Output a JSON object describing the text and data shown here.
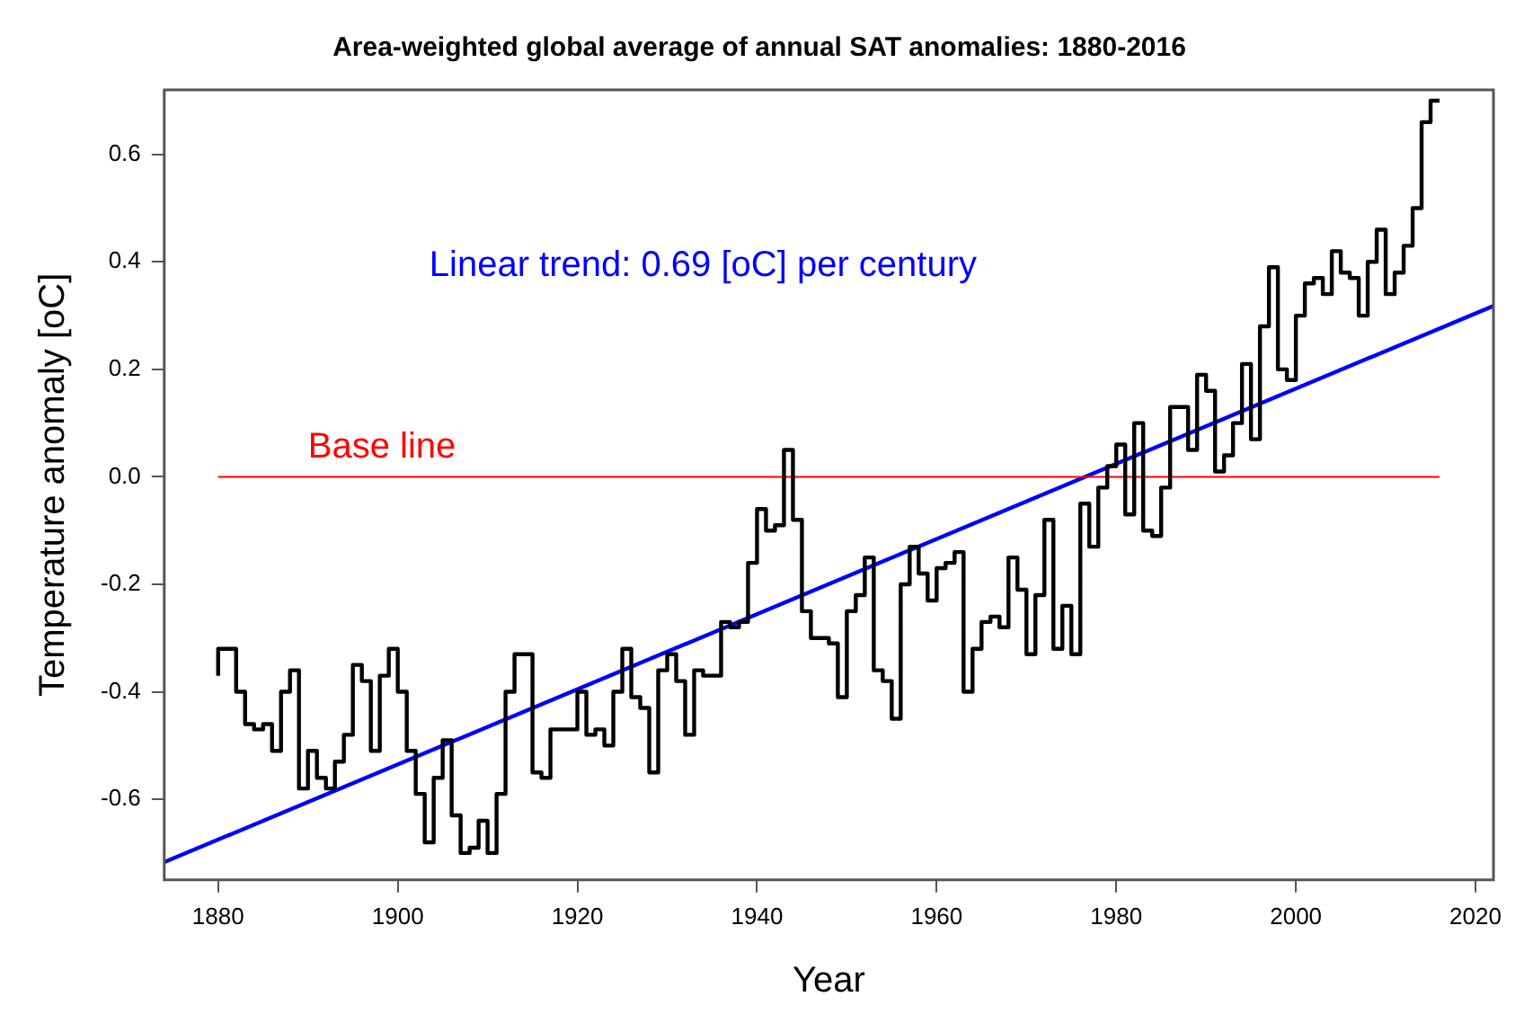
{
  "chart_data": {
    "type": "step",
    "title": "Area-weighted global average of annual SAT anomalies: 1880-2016",
    "xlabel": "Year",
    "ylabel": "Temperature anomaly [oC]",
    "x": [
      1880,
      1881,
      1882,
      1883,
      1884,
      1885,
      1886,
      1887,
      1888,
      1889,
      1890,
      1891,
      1892,
      1893,
      1894,
      1895,
      1896,
      1897,
      1898,
      1899,
      1900,
      1901,
      1902,
      1903,
      1904,
      1905,
      1906,
      1907,
      1908,
      1909,
      1910,
      1911,
      1912,
      1913,
      1914,
      1915,
      1916,
      1917,
      1918,
      1919,
      1920,
      1921,
      1922,
      1923,
      1924,
      1925,
      1926,
      1927,
      1928,
      1929,
      1930,
      1931,
      1932,
      1933,
      1934,
      1935,
      1936,
      1937,
      1938,
      1939,
      1940,
      1941,
      1942,
      1943,
      1944,
      1945,
      1946,
      1947,
      1948,
      1949,
      1950,
      1951,
      1952,
      1953,
      1954,
      1955,
      1956,
      1957,
      1958,
      1959,
      1960,
      1961,
      1962,
      1963,
      1964,
      1965,
      1966,
      1967,
      1968,
      1969,
      1970,
      1971,
      1972,
      1973,
      1974,
      1975,
      1976,
      1977,
      1978,
      1979,
      1980,
      1981,
      1982,
      1983,
      1984,
      1985,
      1986,
      1987,
      1988,
      1989,
      1990,
      1991,
      1992,
      1993,
      1994,
      1995,
      1996,
      1997,
      1998,
      1999,
      2000,
      2001,
      2002,
      2003,
      2004,
      2005,
      2006,
      2007,
      2008,
      2009,
      2010,
      2011,
      2012,
      2013,
      2014,
      2015,
      2016
    ],
    "series": [
      {
        "color": "#000000",
        "values": [
          -0.37,
          -0.32,
          -0.32,
          -0.4,
          -0.46,
          -0.47,
          -0.46,
          -0.51,
          -0.4,
          -0.36,
          -0.58,
          -0.51,
          -0.56,
          -0.58,
          -0.53,
          -0.48,
          -0.35,
          -0.38,
          -0.51,
          -0.37,
          -0.32,
          -0.4,
          -0.51,
          -0.59,
          -0.68,
          -0.56,
          -0.49,
          -0.63,
          -0.7,
          -0.69,
          -0.64,
          -0.7,
          -0.59,
          -0.4,
          -0.33,
          -0.33,
          -0.55,
          -0.56,
          -0.47,
          -0.47,
          -0.47,
          -0.4,
          -0.48,
          -0.47,
          -0.5,
          -0.4,
          -0.32,
          -0.41,
          -0.43,
          -0.55,
          -0.36,
          -0.33,
          -0.38,
          -0.48,
          -0.36,
          -0.37,
          -0.37,
          -0.27,
          -0.28,
          -0.27,
          -0.16,
          -0.06,
          -0.1,
          -0.09,
          0.05,
          -0.08,
          -0.25,
          -0.3,
          -0.3,
          -0.31,
          -0.41,
          -0.25,
          -0.22,
          -0.15,
          -0.36,
          -0.38,
          -0.45,
          -0.2,
          -0.13,
          -0.18,
          -0.23,
          -0.17,
          -0.16,
          -0.14,
          -0.4,
          -0.32,
          -0.27,
          -0.26,
          -0.28,
          -0.15,
          -0.21,
          -0.33,
          -0.22,
          -0.08,
          -0.32,
          -0.24,
          -0.33,
          -0.05,
          -0.13,
          -0.02,
          0.02,
          0.06,
          -0.07,
          0.1,
          -0.1,
          -0.11,
          -0.02,
          0.13,
          0.13,
          0.05,
          0.19,
          0.16,
          0.01,
          0.04,
          0.1,
          0.21,
          0.07,
          0.28,
          0.39,
          0.2,
          0.18,
          0.3,
          0.36,
          0.37,
          0.34,
          0.42,
          0.38,
          0.37,
          0.3,
          0.4,
          0.46,
          0.34,
          0.38,
          0.43,
          0.5,
          0.66,
          0.7
        ]
      },
      {
        "type": "line",
        "name": "Base line",
        "color": "#ff0000",
        "x": [
          1880,
          2016
        ],
        "values": [
          0,
          0
        ]
      },
      {
        "type": "line",
        "name": "Linear trend: 0.69 [oC] per century",
        "color": "#0000ff",
        "x": [
          1874,
          2022
        ],
        "values": [
          -0.717,
          0.318
        ]
      }
    ],
    "xlim": [
      1874,
      2022
    ],
    "xticks": [
      1880,
      1900,
      1920,
      1940,
      1960,
      1980,
      2000,
      2020
    ],
    "ylim": [
      -0.75,
      0.72
    ],
    "yticks": [
      {
        "value": -0.6,
        "label": "-0.6"
      },
      {
        "value": -0.4,
        "label": "-0.4"
      },
      {
        "value": -0.2,
        "label": "-0.2"
      },
      {
        "value": 0,
        "label": "0.0"
      },
      {
        "value": 0.2,
        "label": "0.2"
      },
      {
        "value": 0.4,
        "label": "0.4"
      },
      {
        "value": 0.6,
        "label": "0.6"
      }
    ],
    "grid": false,
    "legend": false,
    "marker": "none",
    "line_style": "solid"
  }
}
